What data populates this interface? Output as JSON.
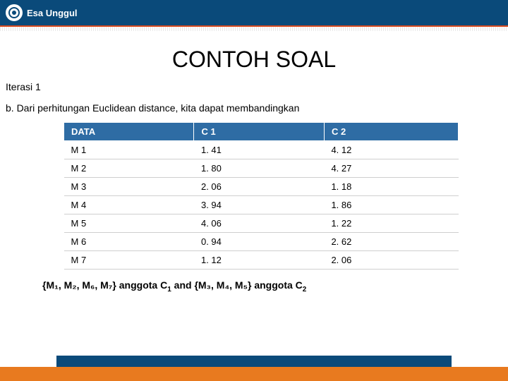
{
  "header": {
    "brand": "Esa Unggul"
  },
  "title": "CONTOH SOAL",
  "iteration_label": "Iterasi 1",
  "body_text": "b. Dari perhitungan Euclidean distance, kita dapat membandingkan",
  "table": {
    "columns": [
      "DATA",
      "C 1",
      "C 2"
    ],
    "rows": [
      [
        "M 1",
        "1. 41",
        "4. 12"
      ],
      [
        "M 2",
        "1. 80",
        "4. 27"
      ],
      [
        "M 3",
        "2. 06",
        "1. 18"
      ],
      [
        "M 4",
        "3. 94",
        "1. 86"
      ],
      [
        "M 5",
        "4. 06",
        "1. 22"
      ],
      [
        "M 6",
        "0. 94",
        "2. 62"
      ],
      [
        "M 7",
        "1. 12",
        "2. 06"
      ]
    ],
    "header_bg": "#2e6ca4",
    "header_fg": "#ffffff",
    "border_color": "#cfcfcf",
    "font_size": 13
  },
  "conclusion": {
    "group1_members": "{M₁, M₂, M₆, M₇}",
    "group1_label": "anggota C",
    "group1_sub": "1",
    "joiner": " and ",
    "group2_members": "{M₃, M₄, M₅}",
    "group2_label": "anggota C",
    "group2_sub": "2"
  },
  "colors": {
    "brand_blue": "#0a4a7a",
    "accent_orange": "#e87a1f",
    "accent_red": "#d84a1f"
  }
}
